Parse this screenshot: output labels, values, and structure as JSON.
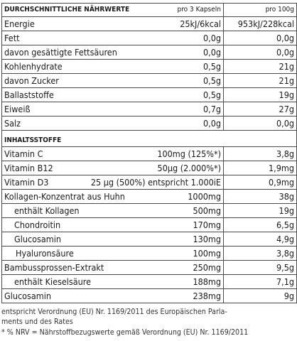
{
  "header": {
    "title": "DURCHSCHNITTLICHE NÄHRWERTE",
    "col_portion": "pro 3 Kapseln",
    "col_100g": "pro 100g"
  },
  "nutrients": [
    {
      "name": "Energie",
      "portion": "25kJ/6kcal",
      "per100": "953kJ/228kcal"
    },
    {
      "name": "Fett",
      "portion": "0,0g",
      "per100": "0,0g"
    },
    {
      "name": "davon gesättigte Fettsäuren",
      "portion": "0,0g",
      "per100": "0,0g"
    },
    {
      "name": "Kohlenhydrate",
      "portion": "0,5g",
      "per100": "21g"
    },
    {
      "name": "davon Zucker",
      "portion": "0,5g",
      "per100": "21g"
    },
    {
      "name": "Ballaststoffe",
      "portion": "0,5g",
      "per100": "19g"
    },
    {
      "name": "Eiweiß",
      "portion": "0,7g",
      "per100": "27g"
    },
    {
      "name": "Salz",
      "portion": "0,0g",
      "per100": "0,0g"
    }
  ],
  "ingredients_title": "INHALTSSTOFFE",
  "ingredients": [
    {
      "name": "Vitamin C",
      "portion": "100mg (125%*)",
      "per100": "3,8g"
    },
    {
      "name": "Vitamin B12",
      "portion": "50µg (2.000%*)",
      "per100": "1,9mg"
    },
    {
      "name": "Vitamin D3",
      "portion": "25 µg (500%) entspricht 1.000iE",
      "per100": "0,9mg"
    },
    {
      "name": "Kollagen-Konzentrat aus Huhn",
      "portion": "1000mg",
      "per100": "38g"
    },
    {
      "name": "enthält Kollagen",
      "portion": "500mg",
      "per100": "19g"
    },
    {
      "name": "Chondroitin",
      "portion": "170mg",
      "per100": "6,5g"
    },
    {
      "name": "Glucosamin",
      "portion": "130mg",
      "per100": "4,9g"
    },
    {
      "name": "Hyaluronsäure",
      "portion": "100mg",
      "per100": "3,8g"
    },
    {
      "name": "Bambussprossen-Extrakt",
      "portion": "250mg",
      "per100": "9,5g"
    },
    {
      "name": "enthält Kieselsäure",
      "portion": "188mg",
      "per100": "7,1g"
    },
    {
      "name": "Glucosamin",
      "portion": "238mg",
      "per100": "9g"
    }
  ],
  "footnote": {
    "line1": "entspricht Verordnung (EU) Nr. 1169/2011 des Europäischen Parla-",
    "line2": "ments und des Rates",
    "line3": "* % NRV = Nährstoffbezugswerte gemäß Verordnung (EU) Nr. 1169/2011"
  }
}
